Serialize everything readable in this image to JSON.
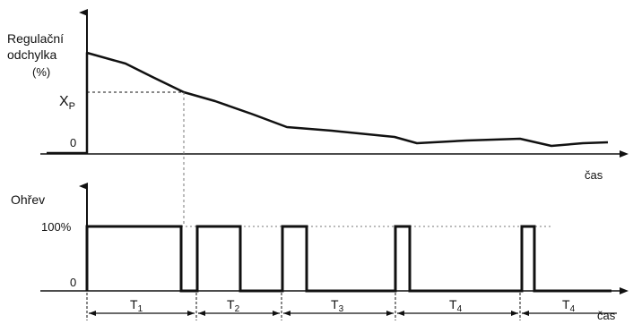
{
  "upper_chart": {
    "ylabel_line1": "Regulační",
    "ylabel_line2": "odchylka",
    "ylabel_unit": "(%)",
    "xp_label": "X",
    "xp_sub": "P",
    "zero_label": "0",
    "xlabel": "čas"
  },
  "lower_chart": {
    "ylabel": "Ohřev",
    "full_label": "100%",
    "zero_label": "0",
    "xlabel": "čas",
    "periods": [
      {
        "main": "T",
        "sub": "1"
      },
      {
        "main": "T",
        "sub": "2"
      },
      {
        "main": "T",
        "sub": "3"
      },
      {
        "main": "T",
        "sub": "4"
      },
      {
        "main": "T",
        "sub": "4"
      }
    ]
  },
  "colors": {
    "ink": "#111111",
    "guide": "#777777"
  }
}
